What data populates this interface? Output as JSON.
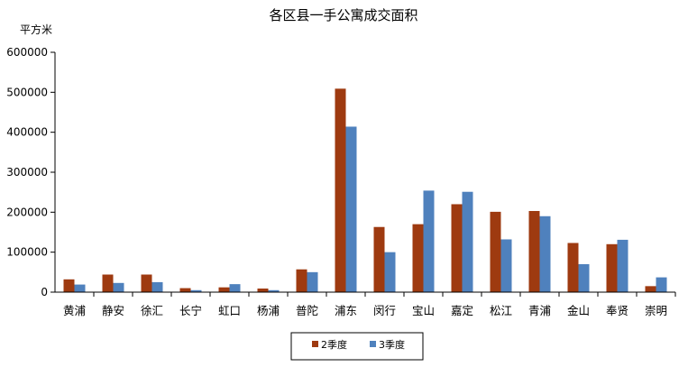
{
  "chart_data": {
    "type": "bar",
    "title": "各区县一手公寓成交面积",
    "ylabel": "平方米",
    "ylim": [
      0,
      600000
    ],
    "yticks": [
      "0",
      "100000",
      "200000",
      "300000",
      "400000",
      "500000",
      "600000"
    ],
    "categories": [
      "黄浦",
      "静安",
      "徐汇",
      "长宁",
      "虹口",
      "杨浦",
      "普陀",
      "浦东",
      "闵行",
      "宝山",
      "嘉定",
      "松江",
      "青浦",
      "金山",
      "奉贤",
      "崇明"
    ],
    "series": [
      {
        "name": "2季度",
        "color": "#9e3a10",
        "values": [
          32000,
          44000,
          44000,
          10000,
          12000,
          9000,
          57000,
          509000,
          163000,
          170000,
          220000,
          201000,
          203000,
          123000,
          120000,
          15000
        ]
      },
      {
        "name": "3季度",
        "color": "#4f81bd",
        "values": [
          19000,
          23000,
          25000,
          5000,
          20000,
          5000,
          50000,
          414000,
          100000,
          254000,
          251000,
          132000,
          190000,
          70000,
          131000,
          37000
        ]
      }
    ],
    "grid": false,
    "legend": "bottom-center"
  }
}
